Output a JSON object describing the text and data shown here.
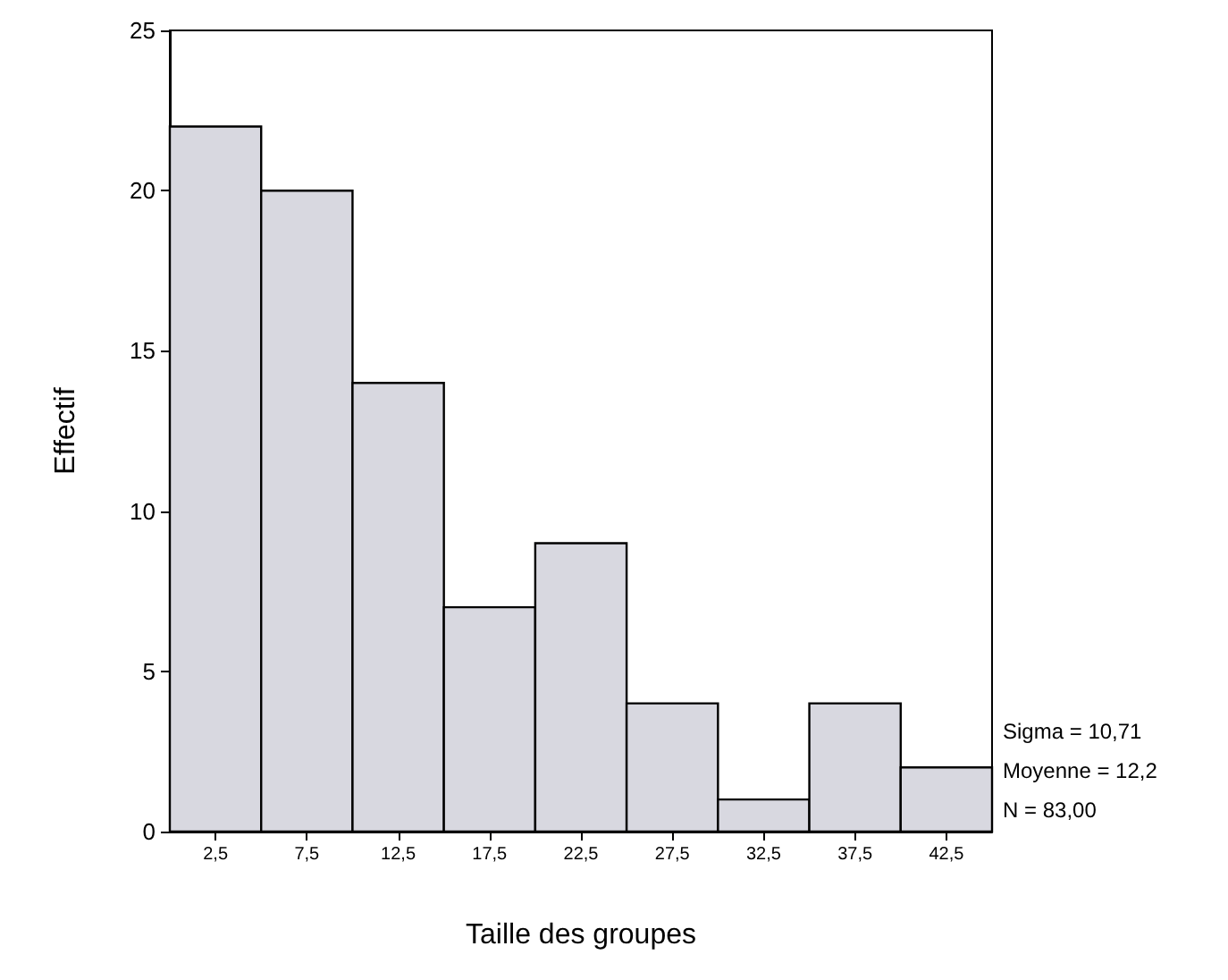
{
  "chart_data": {
    "type": "histogram",
    "xlabel": "Taille des groupes",
    "ylabel": "Effectif",
    "bins": [
      0,
      5,
      10,
      15,
      20,
      25,
      30,
      35,
      40,
      45
    ],
    "values": [
      22,
      20,
      14,
      7,
      9,
      4,
      1,
      4,
      2
    ],
    "color": "#d8d8e0",
    "xlim": [
      0,
      45
    ],
    "xticks": [
      {
        "value": 2.5,
        "label": "2,5"
      },
      {
        "value": 7.5,
        "label": "7,5"
      },
      {
        "value": 12.5,
        "label": "12,5"
      },
      {
        "value": 17.5,
        "label": "17,5"
      },
      {
        "value": 22.5,
        "label": "22,5"
      },
      {
        "value": 27.5,
        "label": "27,5"
      },
      {
        "value": 32.5,
        "label": "32,5"
      },
      {
        "value": 37.5,
        "label": "37,5"
      },
      {
        "value": 42.5,
        "label": "42,5"
      }
    ],
    "ylim": [
      0,
      25
    ],
    "yticks": [
      0,
      5,
      10,
      15,
      20,
      25
    ],
    "grid": false,
    "annotations": [
      "Sigma = 10,71",
      "Moyenne = 12,2",
      "N = 83,00"
    ]
  }
}
